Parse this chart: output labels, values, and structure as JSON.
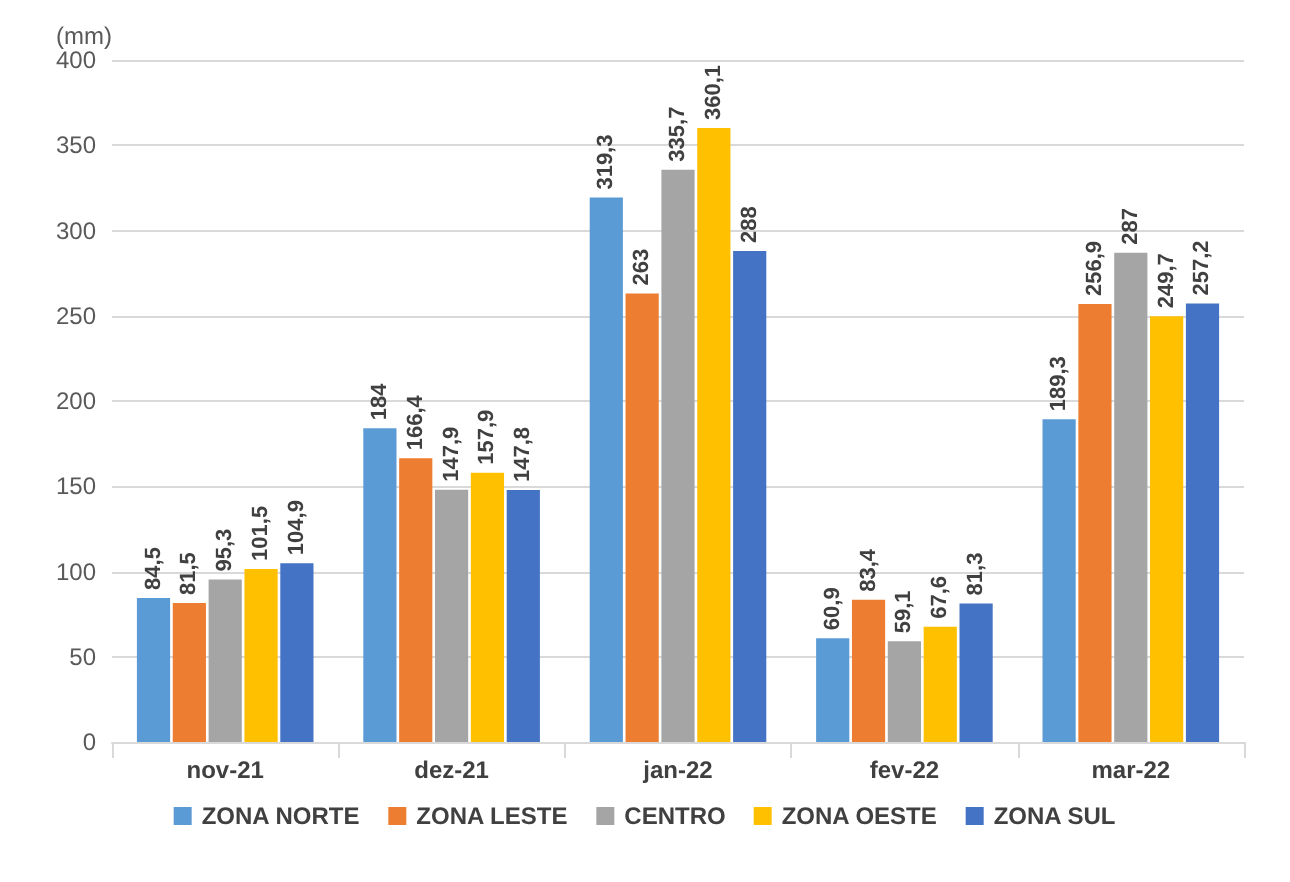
{
  "chart_data": {
    "type": "bar",
    "ylabel": "(mm)",
    "categories": [
      "nov-21",
      "dez-21",
      "jan-22",
      "fev-22",
      "mar-22"
    ],
    "series": [
      {
        "name": "ZONA NORTE",
        "color": "#5b9bd5",
        "values": [
          84.5,
          184,
          319.3,
          60.9,
          189.3
        ],
        "value_labels": [
          "84,5",
          "184",
          "319,3",
          "60,9",
          "189,3"
        ]
      },
      {
        "name": "ZONA LESTE",
        "color": "#ed7d31",
        "values": [
          81.5,
          166.4,
          263,
          83.4,
          256.9
        ],
        "value_labels": [
          "81,5",
          "166,4",
          "263",
          "83,4",
          "256,9"
        ]
      },
      {
        "name": "CENTRO",
        "color": "#a5a5a5",
        "values": [
          95.3,
          147.9,
          335.7,
          59.1,
          287
        ],
        "value_labels": [
          "95,3",
          "147,9",
          "335,7",
          "59,1",
          "287"
        ]
      },
      {
        "name": "ZONA OESTE",
        "color": "#ffc000",
        "values": [
          101.5,
          157.9,
          360.1,
          67.6,
          249.7
        ],
        "value_labels": [
          "101,5",
          "157,9",
          "360,1",
          "67,6",
          "249,7"
        ]
      },
      {
        "name": "ZONA SUL",
        "color": "#4472c4",
        "values": [
          104.9,
          147.8,
          288,
          81.3,
          257.2
        ],
        "value_labels": [
          "104,9",
          "147,8",
          "288",
          "81,3",
          "257,2"
        ]
      }
    ],
    "ylim": [
      0,
      400
    ],
    "yticks": [
      0,
      50,
      100,
      150,
      200,
      250,
      300,
      350,
      400
    ],
    "grid": "y",
    "legend": "bottom"
  }
}
